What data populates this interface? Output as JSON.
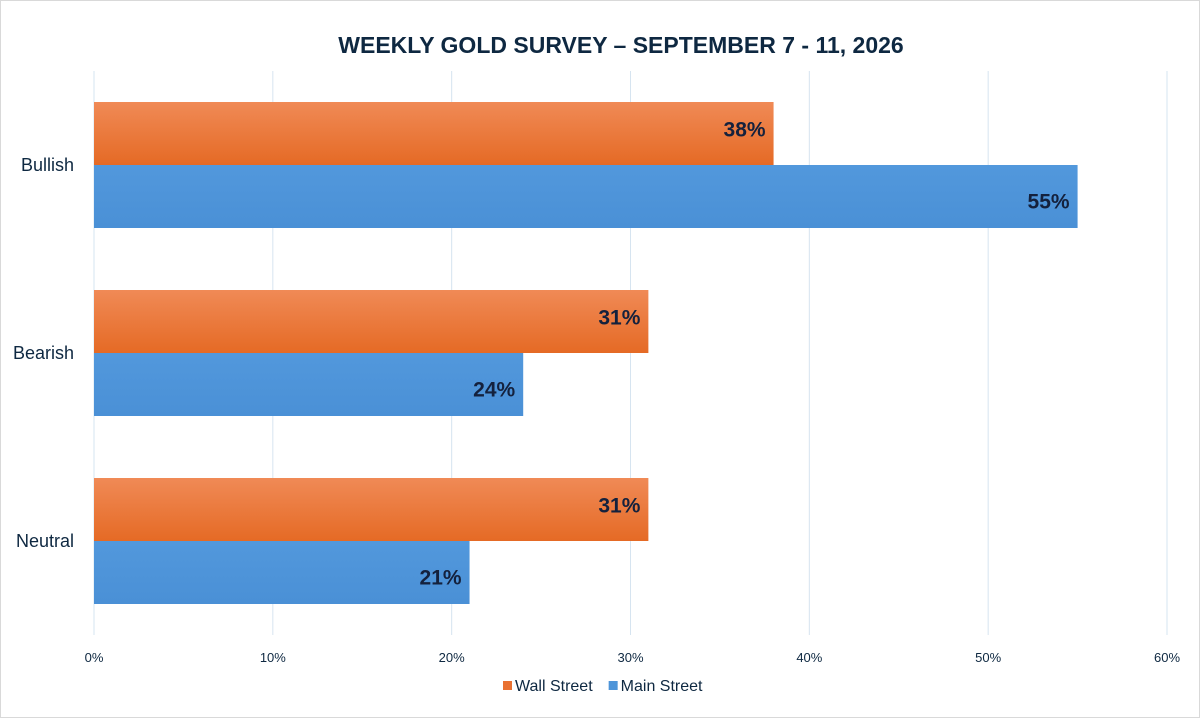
{
  "chart_data": {
    "type": "bar",
    "orientation": "horizontal",
    "title": "WEEKLY GOLD SURVEY – SEPTEMBER 7 - 11, 2026",
    "categories": [
      "Bullish",
      "Bearish",
      "Neutral"
    ],
    "series": [
      {
        "name": "Wall Street",
        "values": [
          38,
          31,
          31
        ],
        "color": "#e97132"
      },
      {
        "name": "Main Street",
        "values": [
          55,
          24,
          21
        ],
        "color": "#4e95d9"
      }
    ],
    "x_ticks": [
      "0%",
      "10%",
      "20%",
      "30%",
      "40%",
      "50%",
      "60%"
    ],
    "xlim": [
      0,
      60
    ],
    "data_label_suffix": "%",
    "grid": true,
    "legend_position": "bottom"
  }
}
